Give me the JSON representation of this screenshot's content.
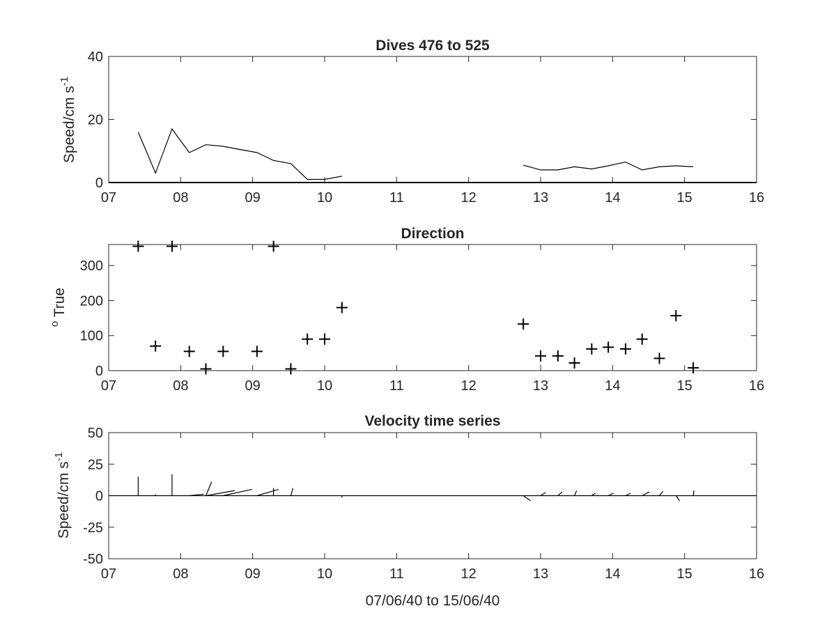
{
  "figure": {
    "background": "#ffffff",
    "axis_color": "#262626",
    "data_color": "#000000"
  },
  "chart_data": [
    {
      "type": "line",
      "title": "Dives 476 to 525",
      "xlabel": "",
      "ylabel": "Speed/cm s",
      "ylabel_sup": "-1",
      "xlim": [
        7,
        16
      ],
      "ylim": [
        0,
        40
      ],
      "xticks": [
        7,
        8,
        9,
        10,
        11,
        12,
        13,
        14,
        15,
        16
      ],
      "xticklabels": [
        "07",
        "08",
        "09",
        "10",
        "11",
        "12",
        "13",
        "14",
        "15",
        "16"
      ],
      "yticks": [
        0,
        20,
        40
      ],
      "yticklabels": [
        "0",
        "20",
        "40"
      ],
      "grid": false,
      "zero_line": true,
      "series": [
        {
          "segments": [
            [
              [
                7.41,
                16.0
              ],
              [
                7.65,
                3.0
              ],
              [
                7.88,
                17.0
              ],
              [
                8.12,
                9.5
              ],
              [
                8.35,
                12.0
              ],
              [
                8.59,
                11.5
              ],
              [
                8.82,
                10.5
              ],
              [
                9.06,
                9.5
              ],
              [
                9.29,
                7.0
              ],
              [
                9.53,
                6.0
              ],
              [
                9.76,
                1.0
              ],
              [
                10.0,
                1.0
              ],
              [
                10.24,
                2.0
              ]
            ],
            [
              [
                12.76,
                5.5
              ],
              [
                13.0,
                4.0
              ],
              [
                13.24,
                4.0
              ],
              [
                13.47,
                5.0
              ],
              [
                13.71,
                4.3
              ],
              [
                13.94,
                5.3
              ],
              [
                14.18,
                6.5
              ],
              [
                14.41,
                4.0
              ],
              [
                14.65,
                5.0
              ],
              [
                14.88,
                5.3
              ],
              [
                15.12,
                5.0
              ]
            ]
          ]
        }
      ]
    },
    {
      "type": "scatter",
      "title": "Direction",
      "xlabel": "",
      "ylabel": " True",
      "ylabel_sup": "o",
      "xlim": [
        7,
        16
      ],
      "ylim": [
        0,
        360
      ],
      "xticks": [
        7,
        8,
        9,
        10,
        11,
        12,
        13,
        14,
        15,
        16
      ],
      "xticklabels": [
        "07",
        "08",
        "09",
        "10",
        "11",
        "12",
        "13",
        "14",
        "15",
        "16"
      ],
      "yticks": [
        0,
        100,
        200,
        300
      ],
      "yticklabels": [
        "0",
        "100",
        "200",
        "300"
      ],
      "grid": false,
      "marker": "+",
      "series": [
        {
          "points": [
            [
              7.41,
              355
            ],
            [
              7.65,
              70
            ],
            [
              7.88,
              355
            ],
            [
              8.12,
              55
            ],
            [
              8.35,
              5
            ],
            [
              8.59,
              55
            ],
            [
              9.06,
              55
            ],
            [
              9.29,
              355
            ],
            [
              9.53,
              5
            ],
            [
              9.76,
              90
            ],
            [
              10.0,
              90
            ],
            [
              10.24,
              180
            ],
            [
              12.76,
              133
            ],
            [
              13.0,
              42
            ],
            [
              13.24,
              42
            ],
            [
              13.47,
              22
            ],
            [
              13.71,
              62
            ],
            [
              13.94,
              67
            ],
            [
              14.18,
              62
            ],
            [
              14.41,
              90
            ],
            [
              14.65,
              35
            ],
            [
              14.88,
              157
            ],
            [
              15.12,
              8
            ]
          ]
        }
      ]
    },
    {
      "type": "quiver",
      "title": "Velocity time series",
      "xlabel": "07/06/40 to 15/06/40",
      "ylabel": "Speed/cm s",
      "ylabel_sup": "-1",
      "xlim": [
        7,
        16
      ],
      "ylim": [
        -50,
        50
      ],
      "xticks": [
        7,
        8,
        9,
        10,
        11,
        12,
        13,
        14,
        15,
        16
      ],
      "xticklabels": [
        "07",
        "08",
        "09",
        "10",
        "11",
        "12",
        "13",
        "14",
        "15",
        "16"
      ],
      "yticks": [
        -50,
        -25,
        0,
        25,
        50
      ],
      "yticklabels": [
        "-50",
        "-25",
        "0",
        "25",
        "50"
      ],
      "grid": false,
      "zero_line": true,
      "series": [
        {
          "vectors": [
            [
              7.41,
              0.0,
              15.0
            ],
            [
              7.65,
              0.0,
              1.0
            ],
            [
              7.88,
              0.0,
              17.0
            ],
            [
              8.12,
              0.2,
              1.2
            ],
            [
              8.35,
              0.4,
              4.0
            ],
            [
              8.35,
              0.08,
              11.0
            ],
            [
              8.59,
              0.4,
              5.0
            ],
            [
              9.06,
              0.3,
              5.0
            ],
            [
              9.29,
              0.0,
              6.0
            ],
            [
              9.53,
              0.03,
              6.0
            ],
            [
              10.24,
              0.0,
              -1.5
            ],
            [
              12.76,
              0.1,
              -4.0
            ],
            [
              13.0,
              0.07,
              2.5
            ],
            [
              13.24,
              0.06,
              3.0
            ],
            [
              13.47,
              0.03,
              4.0
            ],
            [
              13.71,
              0.05,
              2.0
            ],
            [
              13.94,
              0.07,
              2.0
            ],
            [
              14.18,
              0.07,
              2.0
            ],
            [
              14.41,
              0.1,
              3.0
            ],
            [
              14.65,
              0.05,
              3.5
            ],
            [
              14.88,
              0.05,
              -4.0
            ],
            [
              15.12,
              0.01,
              4.0
            ]
          ]
        }
      ]
    }
  ]
}
